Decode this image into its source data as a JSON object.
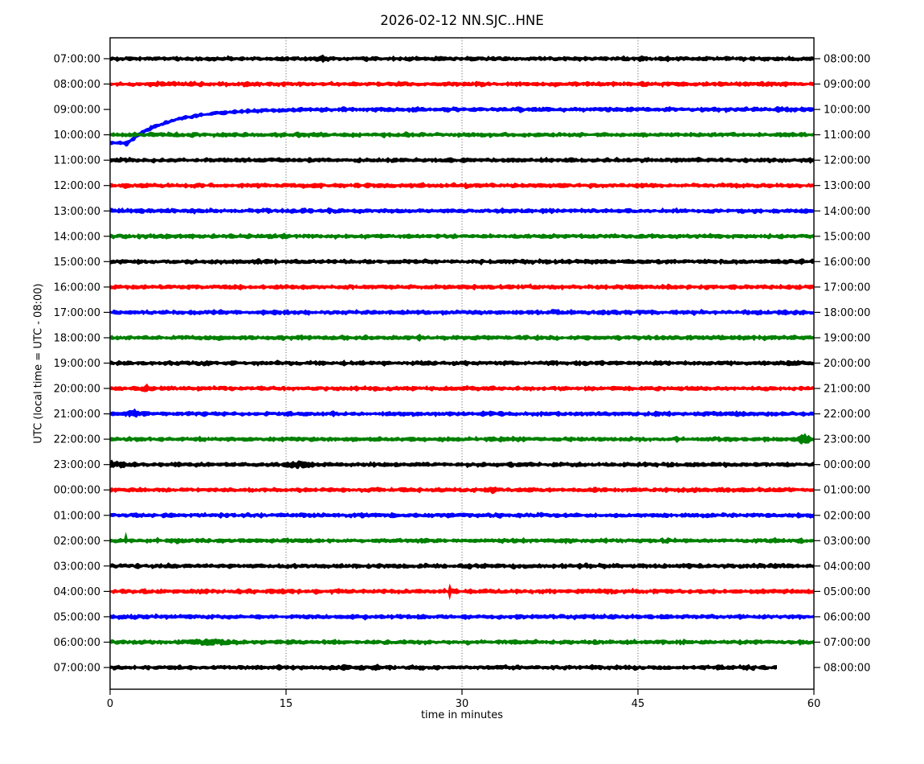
{
  "chart_data": {
    "type": "line",
    "title": "2026-02-12 NN.SJC..HNE",
    "xlabel": "time in minutes",
    "ylabel": "UTC (local time = UTC - 08:00)",
    "x_ticks": [
      0,
      15,
      30,
      45,
      60
    ],
    "xlim": [
      0,
      60
    ],
    "grid_minutes": [
      15,
      30,
      45
    ],
    "grid_style": "dotted-vertical",
    "legend": "none",
    "colors": {
      "black": "#000000",
      "red": "#ff0000",
      "blue": "#0000ff",
      "green": "#008000"
    },
    "rows": [
      {
        "left_label": "07:00:00",
        "right_label": "08:00:00",
        "color": "black",
        "events": [
          {
            "type": "burst",
            "t": 18.1,
            "amp": 2.6,
            "w": 0.18
          }
        ]
      },
      {
        "left_label": "08:00:00",
        "right_label": "09:00:00",
        "color": "red",
        "events": []
      },
      {
        "left_label": "09:00:00",
        "right_label": "10:00:00",
        "color": "blue",
        "events": [
          {
            "type": "settle",
            "flat_until": 1.45,
            "depth": 42,
            "tau": 3.5
          },
          {
            "type": "burst",
            "t": 1.5,
            "amp": 1.5,
            "w": 0.2
          }
        ]
      },
      {
        "left_label": "10:00:00",
        "right_label": "11:00:00",
        "color": "green",
        "events": []
      },
      {
        "left_label": "11:00:00",
        "right_label": "12:00:00",
        "color": "black",
        "events": []
      },
      {
        "left_label": "12:00:00",
        "right_label": "13:00:00",
        "color": "red",
        "events": []
      },
      {
        "left_label": "13:00:00",
        "right_label": "14:00:00",
        "color": "blue",
        "events": []
      },
      {
        "left_label": "14:00:00",
        "right_label": "15:00:00",
        "color": "green",
        "events": []
      },
      {
        "left_label": "15:00:00",
        "right_label": "16:00:00",
        "color": "black",
        "events": []
      },
      {
        "left_label": "16:00:00",
        "right_label": "17:00:00",
        "color": "red",
        "events": []
      },
      {
        "left_label": "17:00:00",
        "right_label": "18:00:00",
        "color": "blue",
        "events": []
      },
      {
        "left_label": "18:00:00",
        "right_label": "19:00:00",
        "color": "green",
        "events": [
          {
            "type": "spike",
            "t": 26.4,
            "up": 5,
            "down": 5
          }
        ]
      },
      {
        "left_label": "19:00:00",
        "right_label": "20:00:00",
        "color": "black",
        "events": []
      },
      {
        "left_label": "20:00:00",
        "right_label": "21:00:00",
        "color": "red",
        "events": [
          {
            "type": "burst",
            "t": 3.2,
            "amp": 2.2,
            "w": 0.25
          }
        ]
      },
      {
        "left_label": "21:00:00",
        "right_label": "22:00:00",
        "color": "blue",
        "events": [
          {
            "type": "burst",
            "t": 2.0,
            "amp": 2.2,
            "w": 0.3
          }
        ]
      },
      {
        "left_label": "22:00:00",
        "right_label": "23:00:00",
        "color": "green",
        "events": [
          {
            "type": "burst",
            "t": 59.1,
            "amp": 5,
            "w": 0.35
          }
        ]
      },
      {
        "left_label": "23:00:00",
        "right_label": "00:00:00",
        "color": "black",
        "events": [
          {
            "type": "burst",
            "t": 0.5,
            "amp": 1.8,
            "w": 0.8
          },
          {
            "type": "burst",
            "t": 16.0,
            "amp": 2.0,
            "w": 0.6
          }
        ]
      },
      {
        "left_label": "00:00:00",
        "right_label": "01:00:00",
        "color": "red",
        "events": [
          {
            "type": "burst",
            "t": 32.6,
            "amp": 2.0,
            "w": 0.2
          }
        ]
      },
      {
        "left_label": "01:00:00",
        "right_label": "02:00:00",
        "color": "blue",
        "events": []
      },
      {
        "left_label": "02:00:00",
        "right_label": "03:00:00",
        "color": "green",
        "events": [
          {
            "type": "spike",
            "t": 1.3,
            "up": 11,
            "down": 4
          }
        ]
      },
      {
        "left_label": "03:00:00",
        "right_label": "04:00:00",
        "color": "black",
        "events": []
      },
      {
        "left_label": "04:00:00",
        "right_label": "05:00:00",
        "color": "red",
        "events": [
          {
            "type": "spike",
            "t": 29.0,
            "up": 10,
            "down": 11
          }
        ]
      },
      {
        "left_label": "05:00:00",
        "right_label": "06:00:00",
        "color": "blue",
        "events": []
      },
      {
        "left_label": "06:00:00",
        "right_label": "07:00:00",
        "color": "green",
        "events": [
          {
            "type": "burst",
            "t": 8.5,
            "amp": 1.2,
            "w": 1.2
          }
        ]
      },
      {
        "left_label": "07:00:00",
        "right_label": "08:00:00",
        "color": "black",
        "events": [],
        "end_minute": 56.9
      }
    ]
  }
}
